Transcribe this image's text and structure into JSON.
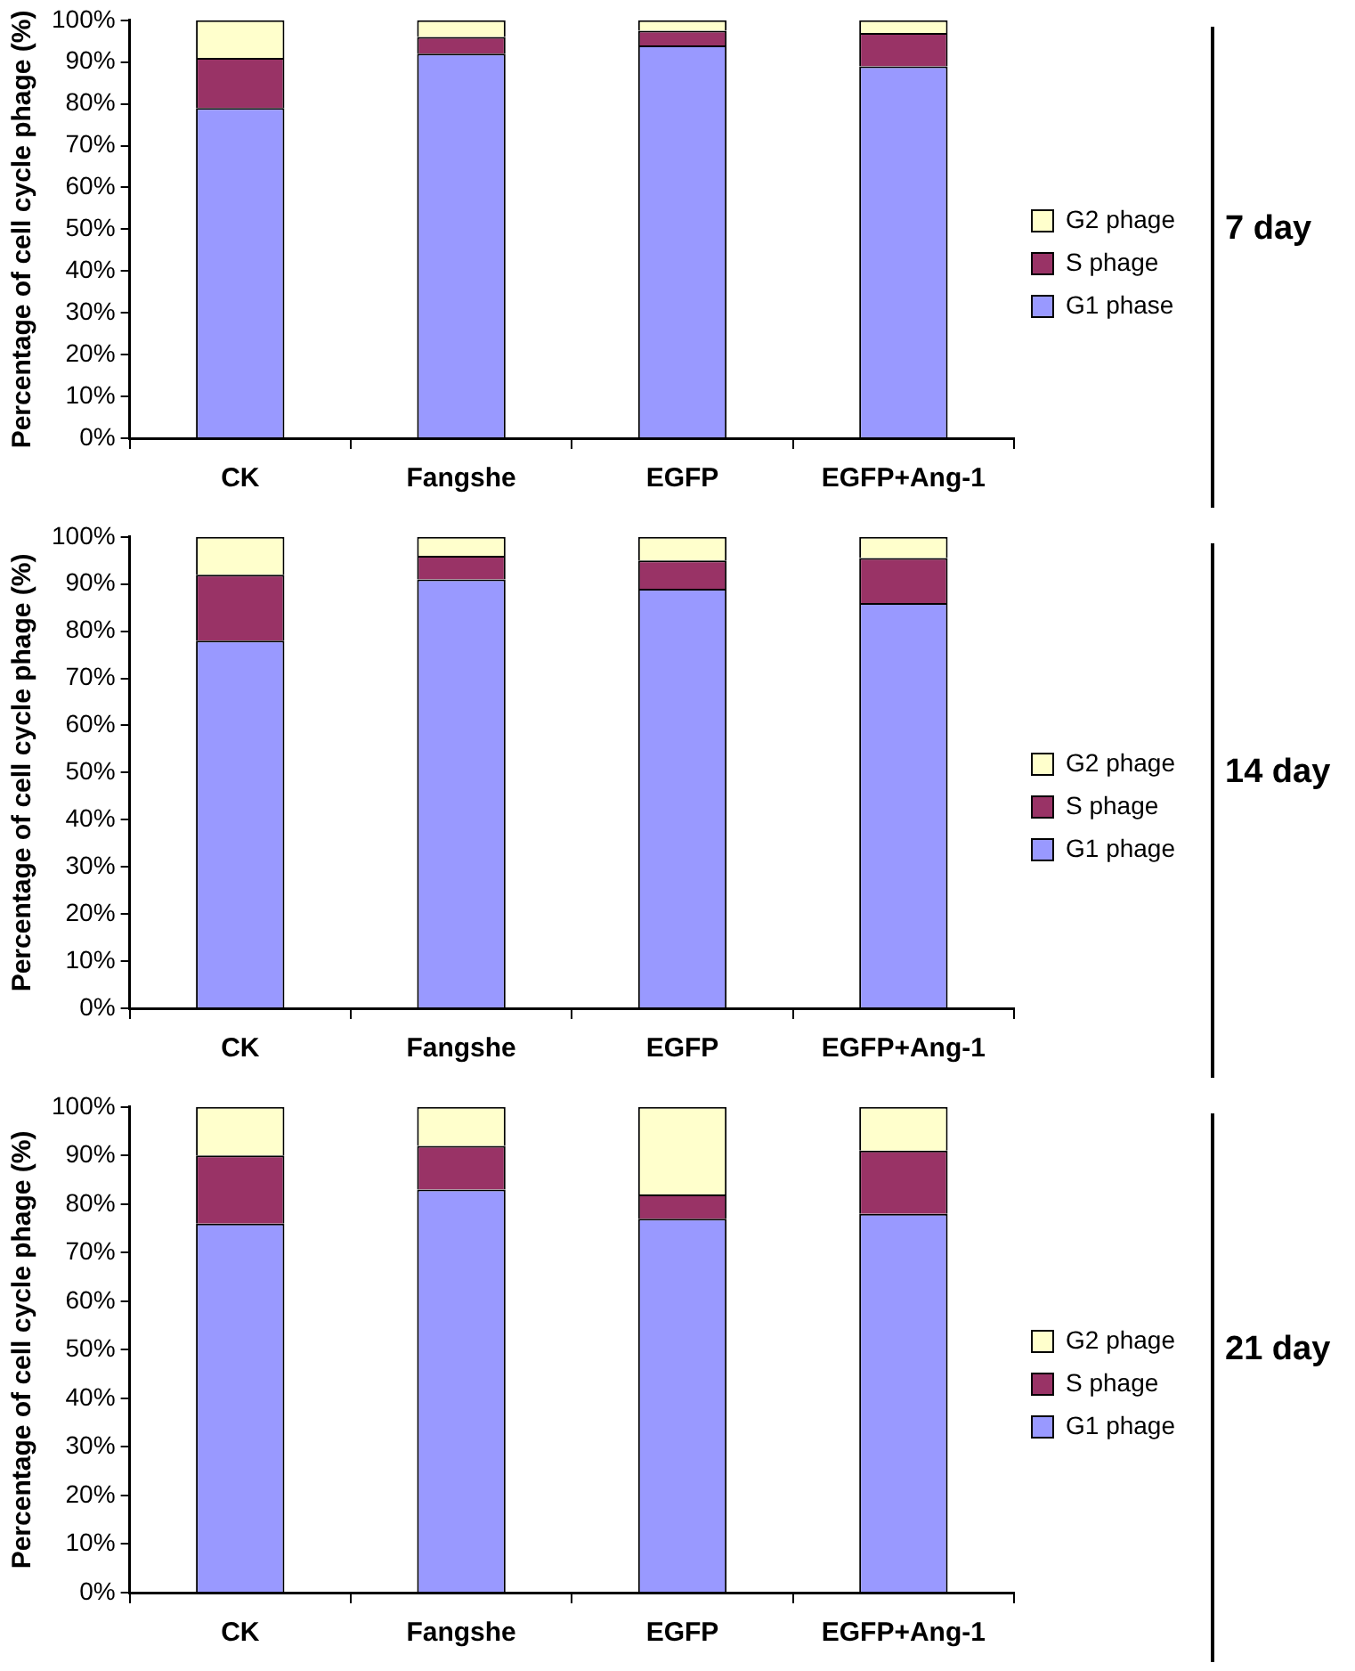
{
  "chart_data": [
    {
      "type": "bar",
      "annotations": [
        "7 day"
      ],
      "ylabel": "Percentage of cell cycle phage (%)",
      "categories": [
        "CK",
        "Fangshe",
        "EGFP",
        "EGFP+Ang-1"
      ],
      "stacked": true,
      "legend": "right",
      "grid": false,
      "ylim": [
        0,
        100
      ],
      "yticks": [
        {
          "value": 0,
          "label": "0%"
        },
        {
          "value": 10,
          "label": "10%"
        },
        {
          "value": 20,
          "label": "20%"
        },
        {
          "value": 30,
          "label": "30%"
        },
        {
          "value": 40,
          "label": "40%"
        },
        {
          "value": 50,
          "label": "50%"
        },
        {
          "value": 60,
          "label": "60%"
        },
        {
          "value": 70,
          "label": "70%"
        },
        {
          "value": 80,
          "label": "80%"
        },
        {
          "value": 90,
          "label": "90%"
        },
        {
          "value": 100,
          "label": "100%"
        }
      ],
      "series": [
        {
          "name": "G1 phase",
          "color": "#9999ff",
          "values": [
            79,
            92,
            94,
            89
          ]
        },
        {
          "name": "S phage",
          "color": "#993366",
          "values": [
            12,
            4,
            3.5,
            8
          ]
        },
        {
          "name": "G2 phage",
          "color": "#ffffcc",
          "values": [
            9,
            4,
            2.5,
            3
          ]
        }
      ]
    },
    {
      "type": "bar",
      "annotations": [
        "14 day"
      ],
      "ylabel": "Percentage of cell cycle phage (%)",
      "categories": [
        "CK",
        "Fangshe",
        "EGFP",
        "EGFP+Ang-1"
      ],
      "stacked": true,
      "legend": "right",
      "grid": false,
      "ylim": [
        0,
        100
      ],
      "yticks": [
        {
          "value": 0,
          "label": "0%"
        },
        {
          "value": 10,
          "label": "10%"
        },
        {
          "value": 20,
          "label": "20%"
        },
        {
          "value": 30,
          "label": "30%"
        },
        {
          "value": 40,
          "label": "40%"
        },
        {
          "value": 50,
          "label": "50%"
        },
        {
          "value": 60,
          "label": "60%"
        },
        {
          "value": 70,
          "label": "70%"
        },
        {
          "value": 80,
          "label": "80%"
        },
        {
          "value": 90,
          "label": "90%"
        },
        {
          "value": 100,
          "label": "100%"
        }
      ],
      "series": [
        {
          "name": "G1 phage",
          "color": "#9999ff",
          "values": [
            78,
            91,
            89,
            86
          ]
        },
        {
          "name": "S phage",
          "color": "#993366",
          "values": [
            14,
            5,
            6,
            9.5
          ]
        },
        {
          "name": "G2 phage",
          "color": "#ffffcc",
          "values": [
            8,
            4,
            5,
            4.5
          ]
        }
      ]
    },
    {
      "type": "bar",
      "annotations": [
        "21 day"
      ],
      "ylabel": "Percentage of cell cycle phage (%)",
      "categories": [
        "CK",
        "Fangshe",
        "EGFP",
        "EGFP+Ang-1"
      ],
      "stacked": true,
      "legend": "right",
      "grid": false,
      "ylim": [
        0,
        100
      ],
      "yticks": [
        {
          "value": 0,
          "label": "0%"
        },
        {
          "value": 10,
          "label": "10%"
        },
        {
          "value": 20,
          "label": "20%"
        },
        {
          "value": 30,
          "label": "30%"
        },
        {
          "value": 40,
          "label": "40%"
        },
        {
          "value": 50,
          "label": "50%"
        },
        {
          "value": 60,
          "label": "60%"
        },
        {
          "value": 70,
          "label": "70%"
        },
        {
          "value": 80,
          "label": "80%"
        },
        {
          "value": 90,
          "label": "90%"
        },
        {
          "value": 100,
          "label": "100%"
        }
      ],
      "series": [
        {
          "name": "G1 phage",
          "color": "#9999ff",
          "values": [
            76,
            83,
            77,
            78
          ]
        },
        {
          "name": "S phage",
          "color": "#993366",
          "values": [
            14,
            9,
            5,
            13
          ]
        },
        {
          "name": "G2 phage",
          "color": "#ffffcc",
          "values": [
            10,
            8,
            18,
            9
          ]
        }
      ]
    }
  ]
}
